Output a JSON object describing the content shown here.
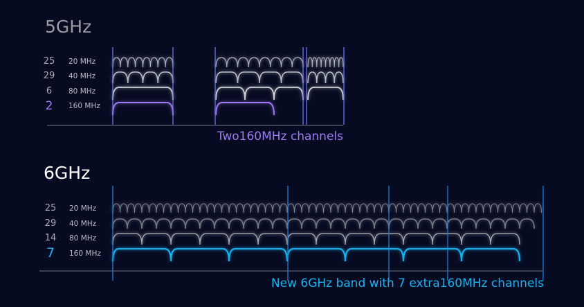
{
  "bands": [
    {
      "title": "5GHz",
      "title_color": "#9b9ca3",
      "accent": "#a07af2",
      "rows": [
        {
          "count": "25",
          "label": "20 MHz"
        },
        {
          "count": "29",
          "label": "40 MHz"
        },
        {
          "count": "6",
          "label": "80 MHz"
        },
        {
          "count": "2",
          "label": "160 MHz"
        }
      ],
      "caption": "Two160MHz channels"
    },
    {
      "title": "6GHz",
      "title_color": "#ffffff",
      "accent": "#1ab2ee",
      "rows": [
        {
          "count": "25",
          "label": "20 MHz"
        },
        {
          "count": "29",
          "label": "40 MHz"
        },
        {
          "count": "14",
          "label": "80 MHz"
        },
        {
          "count": "7",
          "label": "160 MHz"
        }
      ],
      "caption": "New 6GHz band with 7 extra160MHz channels"
    }
  ]
}
